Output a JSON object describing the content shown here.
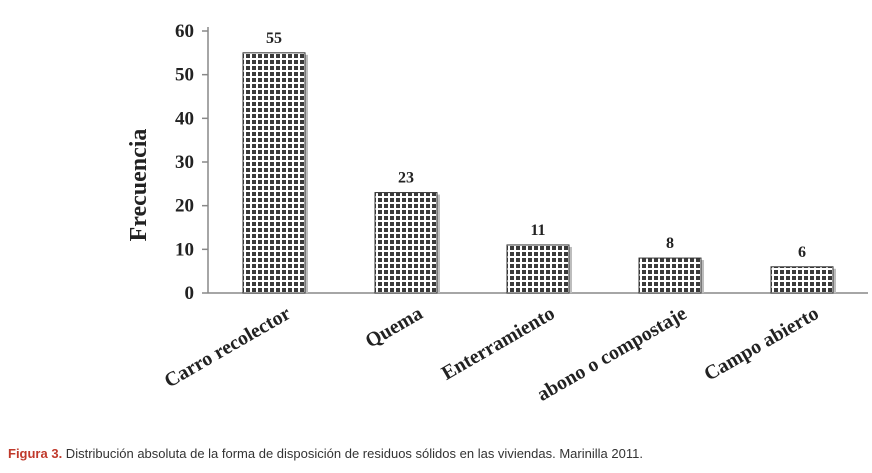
{
  "chart_data": {
    "type": "bar",
    "categories": [
      "Carro recolector",
      "Quema",
      "Enterramiento",
      "abono o compostaje",
      "Campo abierto"
    ],
    "values": [
      55,
      23,
      11,
      8,
      6
    ],
    "data_labels": [
      "55",
      "23",
      "11",
      "8",
      "6"
    ],
    "ylabel": "Frecuencia",
    "xlabel": "",
    "ylim": [
      0,
      60
    ],
    "yticks": [
      0,
      10,
      20,
      30,
      40,
      50,
      60
    ],
    "grid": false,
    "legend": "none",
    "bar_pattern": "checkered"
  },
  "caption": {
    "label": "Figura 3.",
    "text": " Distribución absoluta de la forma de disposición de residuos sólidos en las viviendas. Marinilla 2011."
  },
  "colors": {
    "bar_dark": "#3a3a3a",
    "bar_light": "#ffffff",
    "axis": "#888888",
    "caption_label": "#c0392b"
  }
}
